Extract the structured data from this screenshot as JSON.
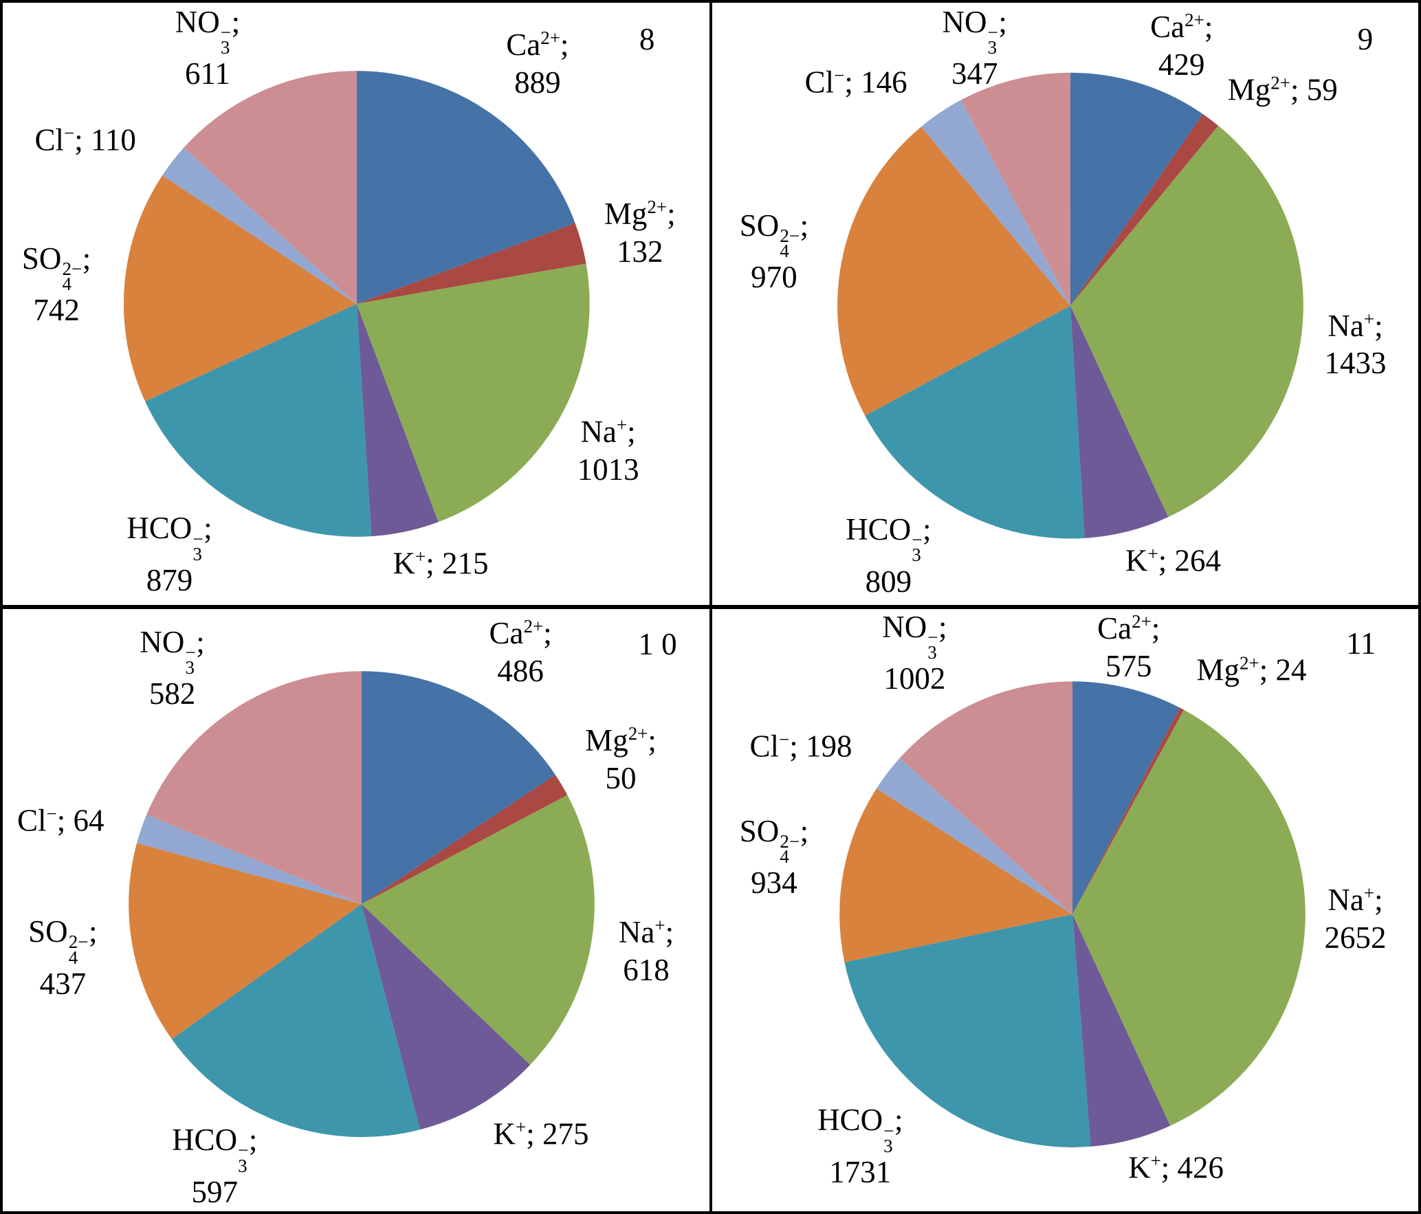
{
  "figure": {
    "description": "Four outside-labelled pie charts of ion concentrations, panels numbered 8, 9, 1 0 and 11",
    "label_separator": ";"
  },
  "ions": {
    "ca": {
      "name": "Ca2+",
      "base": "Ca",
      "sup": "2+",
      "sub": "",
      "stacked": false,
      "color": "#4573A7"
    },
    "mg": {
      "name": "Mg2+",
      "base": "Mg",
      "sup": "2+",
      "sub": "",
      "stacked": false,
      "color": "#AA4843"
    },
    "na": {
      "name": "Na+",
      "base": "Na",
      "sup": "+",
      "sub": "",
      "stacked": false,
      "color": "#8CAB55"
    },
    "k": {
      "name": "K+",
      "base": "K",
      "sup": "+",
      "sub": "",
      "stacked": false,
      "color": "#6E5A97"
    },
    "hco3": {
      "name": "HCO3-",
      "base": "HCO",
      "sup": "−",
      "sub": "3",
      "stacked": true,
      "color": "#3E96AC"
    },
    "so4": {
      "name": "SO4 2-",
      "base": "SO",
      "sup": "2−",
      "sub": "4",
      "stacked": true,
      "color": "#D8823E"
    },
    "cl": {
      "name": "Cl-",
      "base": "Cl",
      "sup": "−",
      "sub": "",
      "stacked": false,
      "color": "#92A8D2"
    },
    "no3": {
      "name": "NO3-",
      "base": "NO",
      "sup": "−",
      "sub": "3",
      "stacked": true,
      "color": "#CC8E92"
    }
  },
  "chart_data": [
    {
      "type": "pie",
      "panel_label": "8",
      "categories": [
        "Ca²⁺",
        "Mg²⁺",
        "Na⁺",
        "K⁺",
        "HCO₃⁻",
        "SO₄²⁻",
        "Cl⁻",
        "NO₃⁻"
      ],
      "values": [
        889,
        132,
        1013,
        215,
        879,
        742,
        110,
        611
      ],
      "colors": [
        "#4573A7",
        "#AA4843",
        "#8CAB55",
        "#6E5A97",
        "#3E96AC",
        "#D8823E",
        "#92A8D2",
        "#CC8E92"
      ],
      "start_angle_deg": 0,
      "direction": "clockwise",
      "labels": "outside",
      "legend": "none"
    },
    {
      "type": "pie",
      "panel_label": "9",
      "categories": [
        "Ca²⁺",
        "Mg²⁺",
        "Na⁺",
        "K⁺",
        "HCO₃⁻",
        "SO₄²⁻",
        "Cl⁻",
        "NO₃⁻"
      ],
      "values": [
        429,
        59,
        1433,
        264,
        809,
        970,
        146,
        347
      ],
      "colors": [
        "#4573A7",
        "#AA4843",
        "#8CAB55",
        "#6E5A97",
        "#3E96AC",
        "#D8823E",
        "#92A8D2",
        "#CC8E92"
      ],
      "start_angle_deg": 0,
      "direction": "clockwise",
      "labels": "outside",
      "legend": "none"
    },
    {
      "type": "pie",
      "panel_label": "1 0",
      "categories": [
        "Ca²⁺",
        "Mg²⁺",
        "Na⁺",
        "K⁺",
        "HCO₃⁻",
        "SO₄²⁻",
        "Cl⁻",
        "NO₃⁻"
      ],
      "values": [
        486,
        50,
        618,
        275,
        597,
        437,
        64,
        582
      ],
      "colors": [
        "#4573A7",
        "#AA4843",
        "#8CAB55",
        "#6E5A97",
        "#3E96AC",
        "#D8823E",
        "#92A8D2",
        "#CC8E92"
      ],
      "start_angle_deg": 0,
      "direction": "clockwise",
      "labels": "outside",
      "legend": "none"
    },
    {
      "type": "pie",
      "panel_label": "11",
      "categories": [
        "Ca²⁺",
        "Mg²⁺",
        "Na⁺",
        "K⁺",
        "HCO₃⁻",
        "SO₄²⁻",
        "Cl⁻",
        "NO₃⁻"
      ],
      "values": [
        575,
        24,
        2652,
        426,
        1731,
        934,
        198,
        1002
      ],
      "colors": [
        "#4573A7",
        "#AA4843",
        "#8CAB55",
        "#6E5A97",
        "#3E96AC",
        "#D8823E",
        "#92A8D2",
        "#CC8E92"
      ],
      "start_angle_deg": 0,
      "direction": "clockwise",
      "labels": "outside",
      "legend": "none"
    }
  ]
}
